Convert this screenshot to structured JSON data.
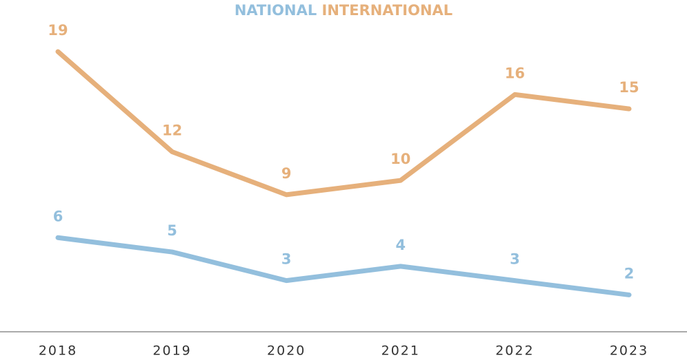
{
  "chart_data": {
    "type": "line",
    "x": [
      "2018",
      "2019",
      "2020",
      "2021",
      "2022",
      "2023"
    ],
    "series": [
      {
        "name": "NATIONAL",
        "color": "#93bfdd",
        "values": [
          6,
          5,
          3,
          4,
          3,
          2
        ]
      },
      {
        "name": "INTERNATIONAL",
        "color": "#e6b07b",
        "values": [
          19,
          12,
          9,
          10,
          16,
          15
        ]
      }
    ]
  }
}
